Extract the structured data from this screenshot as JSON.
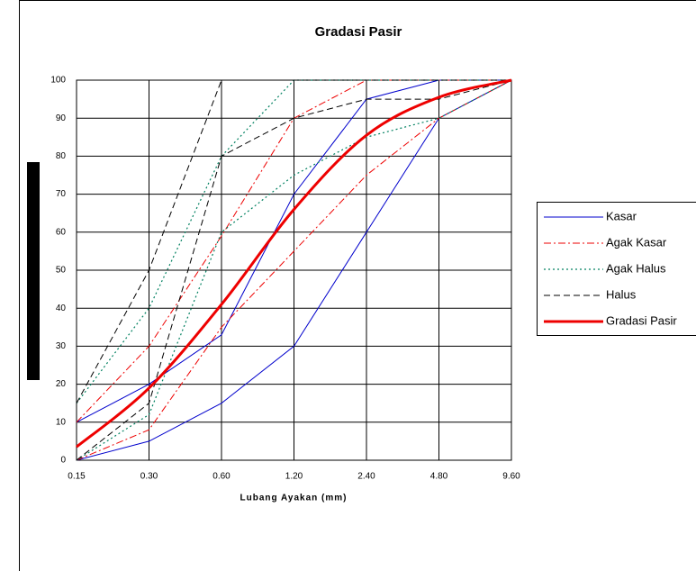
{
  "chart_data": {
    "type": "line",
    "title": "Gradasi Pasir",
    "x_label": "Lubang Ayakan (mm)",
    "x": [
      0.15,
      0.3,
      0.6,
      1.2,
      2.4,
      4.8,
      9.6
    ],
    "xlim": [
      0.15,
      9.6
    ],
    "xscale": "log",
    "xticks": [
      {
        "value": 0.15,
        "label": "0.15"
      },
      {
        "value": 0.3,
        "label": "0.30"
      },
      {
        "value": 0.6,
        "label": "0.60"
      },
      {
        "value": 1.2,
        "label": "1.20"
      },
      {
        "value": 2.4,
        "label": "2.40"
      },
      {
        "value": 4.8,
        "label": "4.80"
      },
      {
        "value": 9.6,
        "label": "9.60"
      }
    ],
    "ylim": [
      0,
      100
    ],
    "yticks": [
      0,
      10,
      20,
      30,
      40,
      50,
      60,
      70,
      80,
      90,
      100
    ],
    "grid": true,
    "legend": "right",
    "series": [
      {
        "name": "Kasar",
        "color": "#0000cc",
        "dash": "none",
        "width": 1,
        "values": [
          0,
          5,
          15,
          30,
          60,
          90,
          100
        ],
        "values_upper": [
          10,
          20,
          33,
          70,
          95,
          100,
          100
        ]
      },
      {
        "name": "Agak Kasar",
        "color": "#ee0000",
        "dash": "8 3 2 3",
        "width": 1,
        "values": [
          0,
          8,
          35,
          55,
          75,
          90,
          100
        ],
        "values_upper": [
          10,
          30,
          59,
          90,
          100,
          100,
          100
        ]
      },
      {
        "name": "Agak Halus",
        "color": "#008060",
        "dash": "2 3",
        "width": 1.2,
        "values": [
          0,
          12,
          60,
          75,
          85,
          90,
          100
        ],
        "values_upper": [
          15,
          40,
          80,
          100,
          100,
          100,
          100
        ]
      },
      {
        "name": "Halus",
        "color": "#000000",
        "dash": "7 4",
        "width": 1,
        "values": [
          0,
          15,
          80,
          90,
          95,
          95,
          100
        ],
        "values_upper": [
          15,
          50,
          100,
          100,
          100,
          100,
          100
        ]
      },
      {
        "name": "Gradasi Pasir",
        "color": "#ee0000",
        "dash": "none",
        "width": 3,
        "smooth": true,
        "values": [
          3.5,
          19,
          41,
          66,
          85.5,
          95.5,
          100
        ]
      }
    ]
  }
}
